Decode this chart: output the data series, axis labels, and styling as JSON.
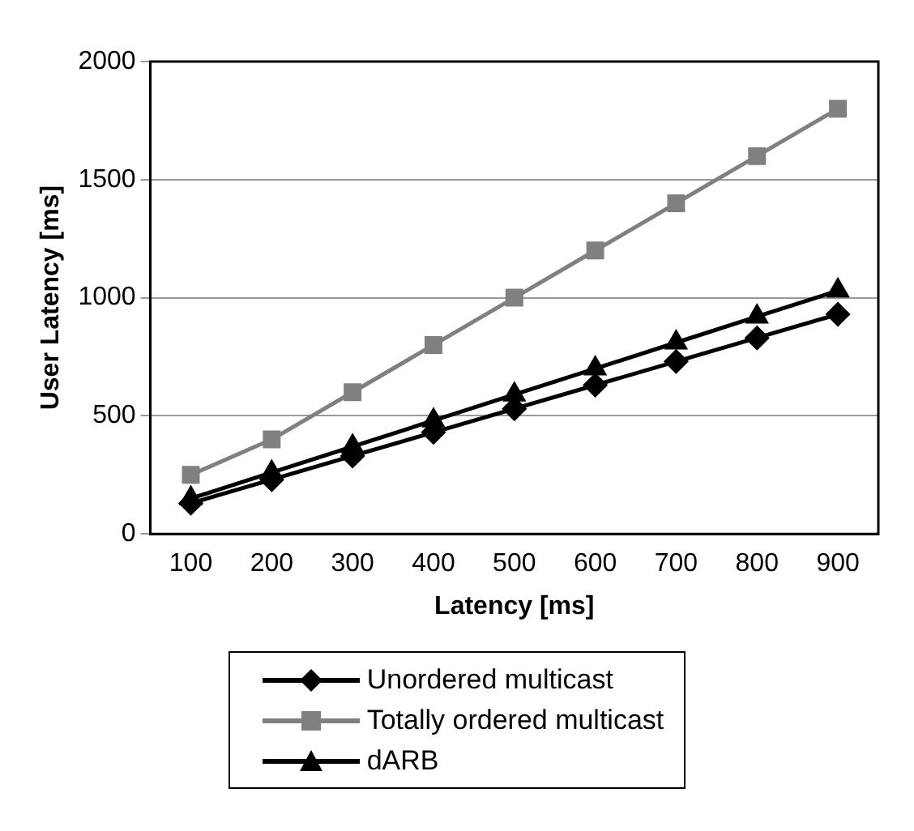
{
  "chart_data": {
    "type": "line",
    "xlabel": "Latency [ms]",
    "ylabel": "User Latency [ms]",
    "categories": [
      "100",
      "200",
      "300",
      "400",
      "500",
      "600",
      "700",
      "800",
      "900"
    ],
    "ylim": [
      0,
      2000
    ],
    "yticks": [
      0,
      500,
      1000,
      1500,
      2000
    ],
    "grid": "y",
    "legend": "bottom",
    "line_style": "solid",
    "series": [
      {
        "name": "Unordered multicast",
        "color": "#000000",
        "marker": "diamond",
        "values": [
          130,
          230,
          330,
          430,
          530,
          630,
          730,
          830,
          930
        ]
      },
      {
        "name": "Totally ordered multicast",
        "color": "#808080",
        "marker": "square",
        "values": [
          250,
          400,
          600,
          800,
          1000,
          1200,
          1400,
          1600,
          1800
        ]
      },
      {
        "name": "dARB",
        "color": "#000000",
        "marker": "triangle",
        "values": [
          150,
          260,
          370,
          480,
          590,
          700,
          810,
          920,
          1030
        ]
      }
    ]
  }
}
